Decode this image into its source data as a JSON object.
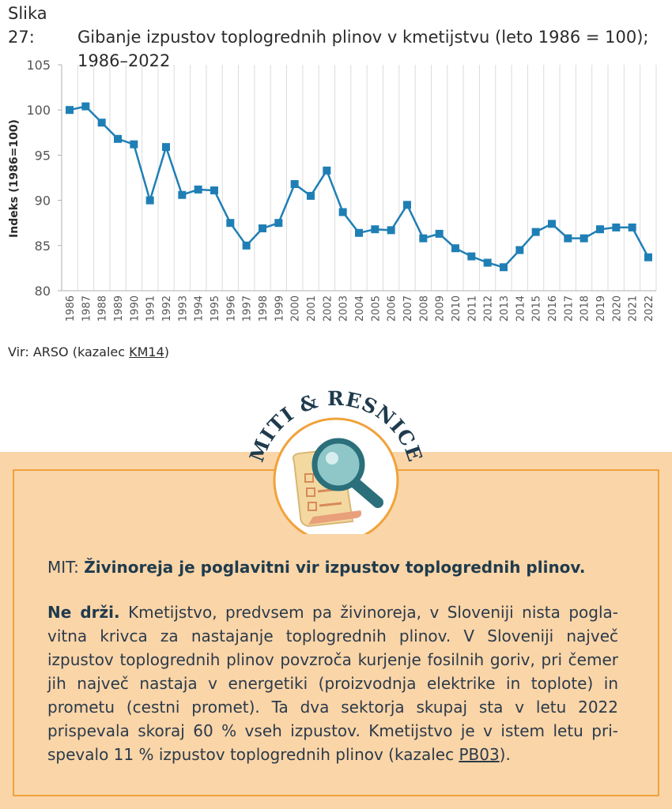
{
  "caption": {
    "label": "Slika 27:",
    "line1": "Gibanje izpustov toplogrednih plinov v kmetijstvu (leto 1986 = 100);",
    "line2": "1986–2022"
  },
  "chart_data": {
    "type": "line",
    "title": "",
    "xlabel": "",
    "ylabel": "Indeks (1986=100)",
    "ylim": [
      80,
      105
    ],
    "yticks": [
      80,
      85,
      90,
      95,
      100,
      105
    ],
    "grid": "vertical",
    "x": [
      "1986",
      "1987",
      "1988",
      "1989",
      "1990",
      "1991",
      "1992",
      "1993",
      "1994",
      "1995",
      "1996",
      "1997",
      "1998",
      "1999",
      "2000",
      "2001",
      "2002",
      "2003",
      "2004",
      "2005",
      "2006",
      "2007",
      "2008",
      "2009",
      "2010",
      "2011",
      "2012",
      "2013",
      "2014",
      "2015",
      "2016",
      "2017",
      "2018",
      "2019",
      "2020",
      "2021",
      "2022"
    ],
    "series": [
      {
        "color": "#1f7fb5",
        "values": [
          100.0,
          100.4,
          98.6,
          96.8,
          96.2,
          90.0,
          95.9,
          90.6,
          91.2,
          91.1,
          87.5,
          85.0,
          86.9,
          87.5,
          91.8,
          90.5,
          93.3,
          88.7,
          86.4,
          86.8,
          86.7,
          89.5,
          85.8,
          86.3,
          84.7,
          83.8,
          83.1,
          82.6,
          84.5,
          86.5,
          87.4,
          85.8,
          85.8,
          86.8,
          87.0,
          87.0,
          83.7
        ]
      }
    ]
  },
  "source": {
    "prefix": "Vir: ARSO (kazalec ",
    "link": "KM14",
    "suffix": ")"
  },
  "badge": {
    "text": "MITI & RESNICE",
    "color": "#1f3b4d"
  },
  "myth": {
    "prefix": "MIT: ",
    "statement": "Živinoreja je poglavitni vir izpustov toplogrednih plinov."
  },
  "truth": {
    "verdict": "Ne drži.",
    "text": " Kmetijstvo, predvsem pa živinoreja, v Sloveniji nista pogla­vitna krivca za nastajanje toplogrednih plinov. V Sloveniji največ izpustov toplogrednih plinov povzroča kurjenje fosilnih goriv, pri če­mer jih največ nastaja v energetiki (proizvodnja elektrike in toplote) in prometu (cestni promet). Ta dva sektorja skupaj sta v letu 2022 prispevala skoraj 60 % vseh izpustov. Kmetijstvo je v istem letu pri­spevalo 11 % izpustov toplogrednih plinov (kazalec ",
    "link": "PB03",
    "suffix": ")."
  },
  "colors": {
    "line": "#1f7fb5",
    "band": "#fad5a8",
    "border": "#f0a23a",
    "badge_ring": "#f0a23a",
    "heading": "#1f3b4d"
  }
}
